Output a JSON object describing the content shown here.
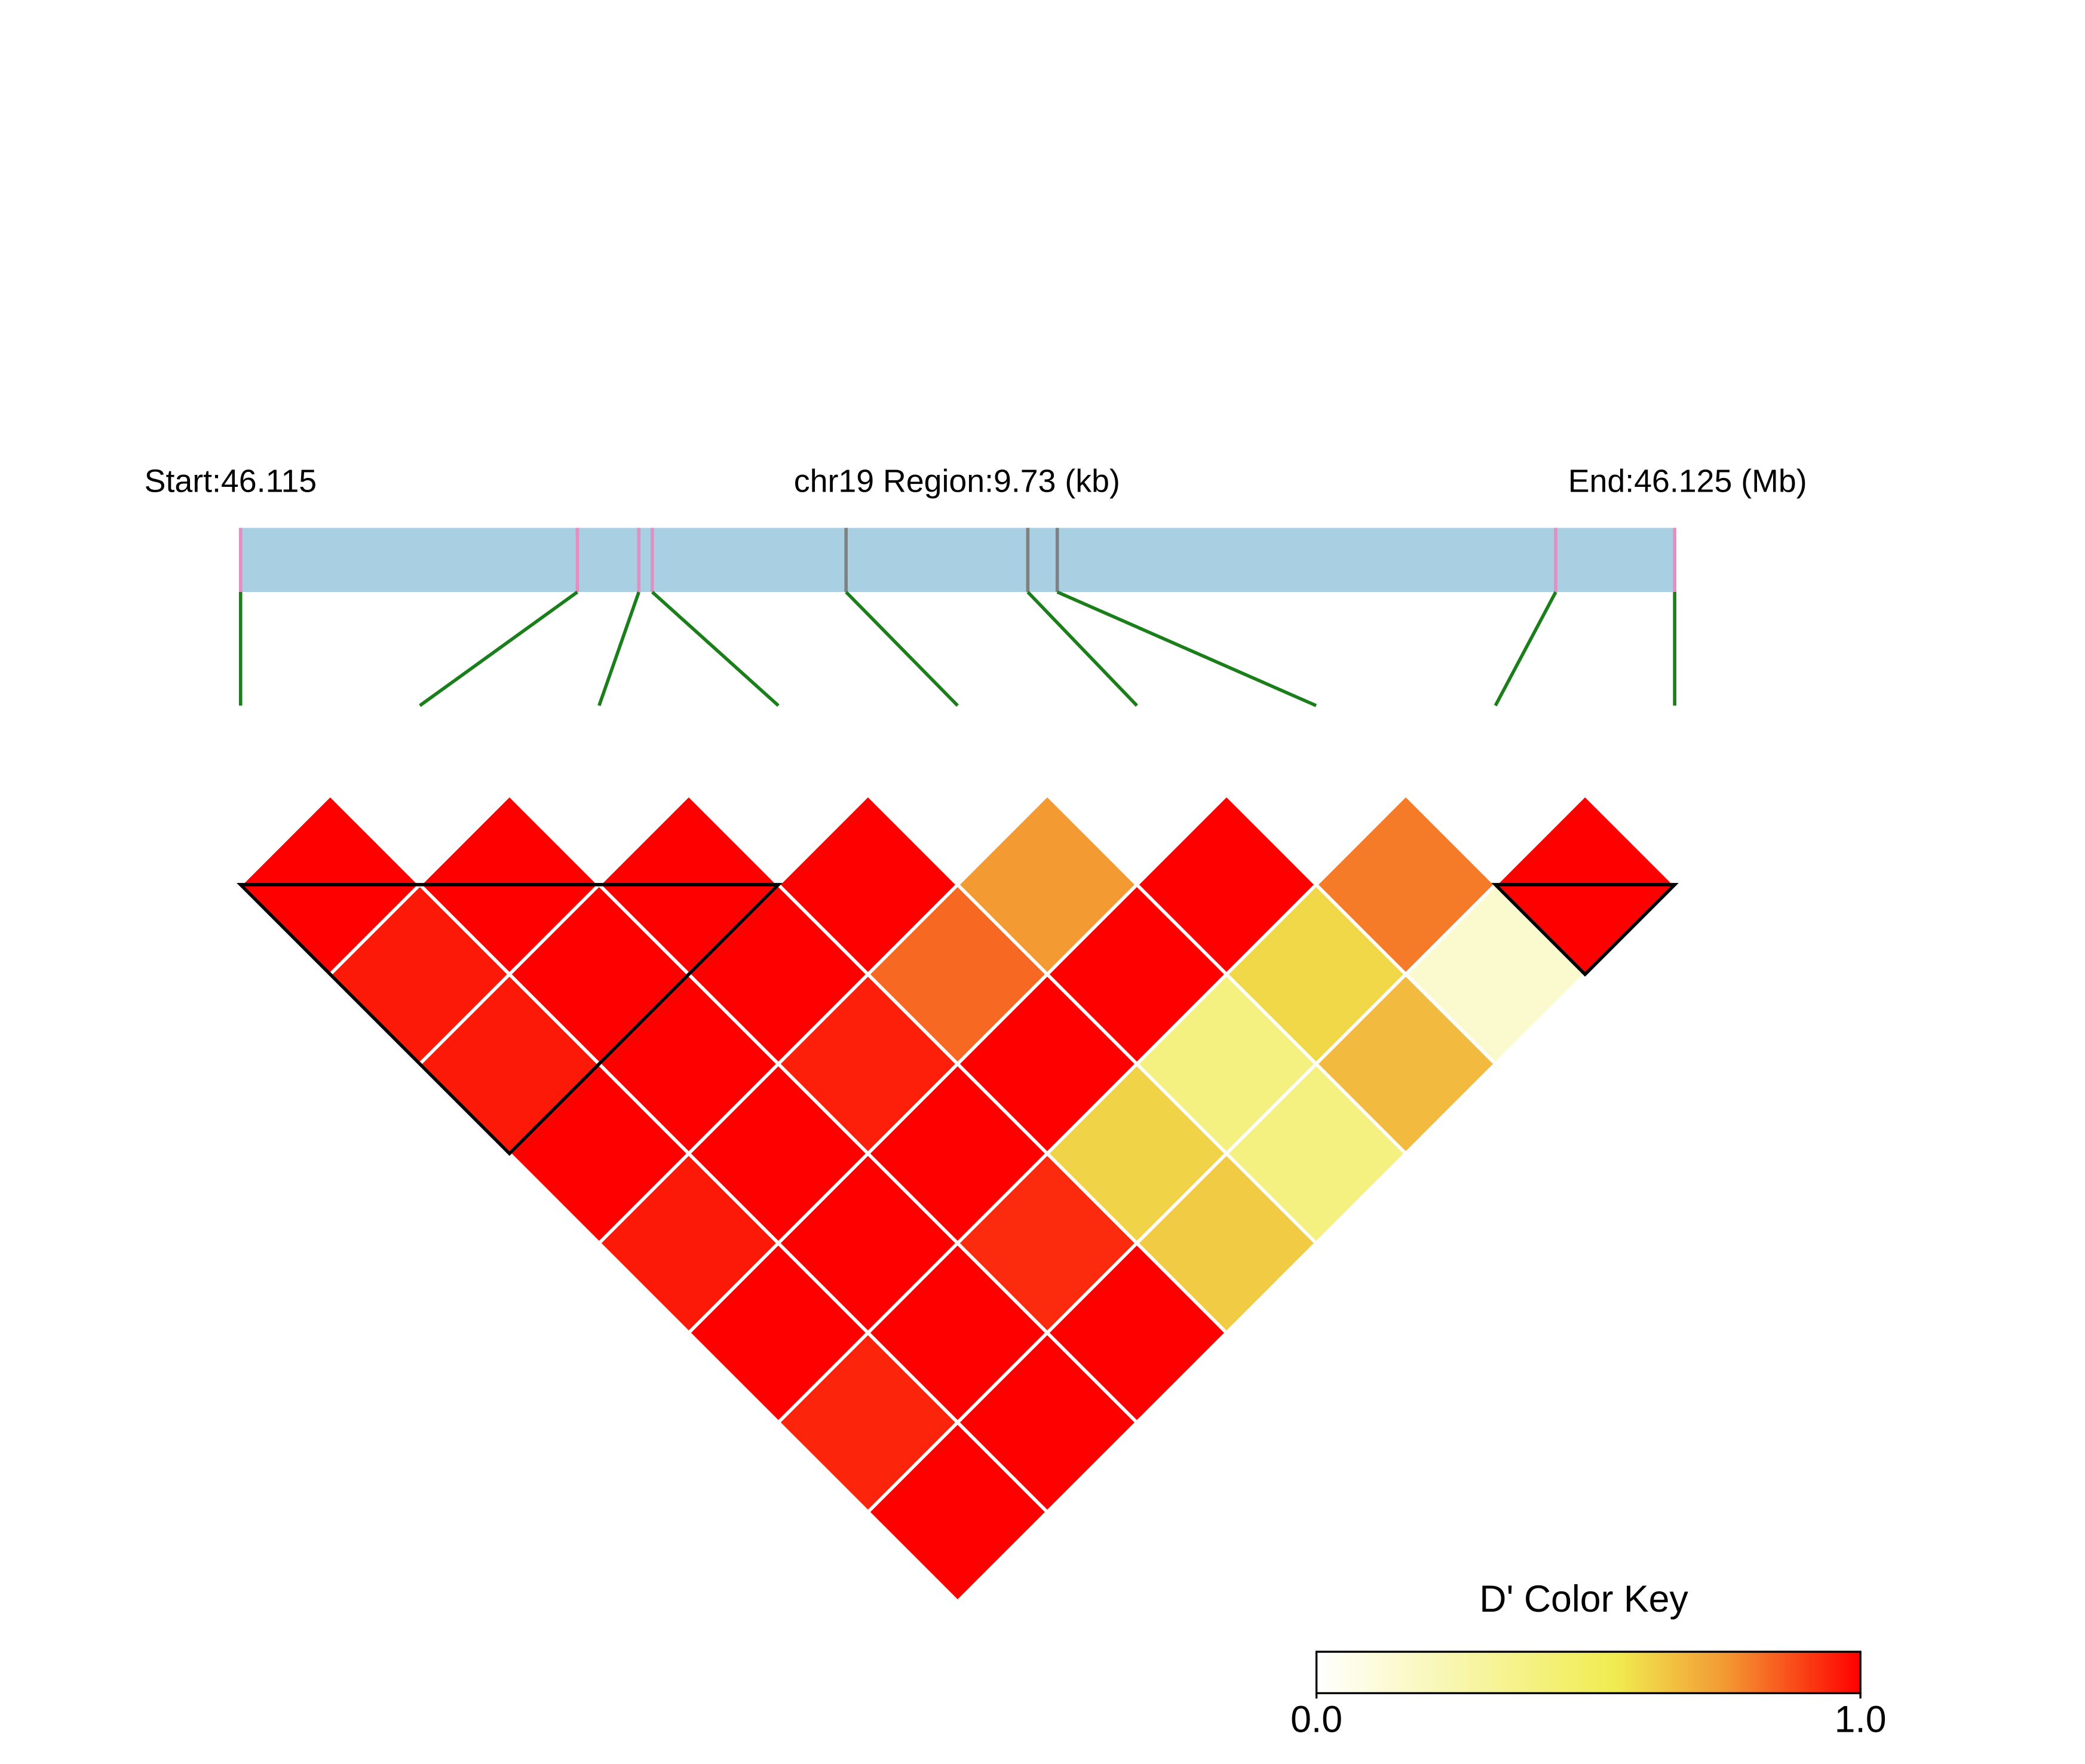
{
  "chart_data": {
    "type": "ld-heatmap",
    "start_label": "Start:46.115",
    "region_label": "chr19 Region:9.73 (kb)",
    "end_label": "End:46.125 (Mb)",
    "snp_positions": [
      0,
      2.285,
      2.702,
      2.793,
      4.108,
      5.341,
      5.541,
      8.923,
      9.73
    ],
    "xlim": [
      0,
      9.73
    ],
    "snp_colors": [
      "#e38fc2",
      "#e38fc2",
      "#e38fc2",
      "#e38fc2",
      "#808080",
      "#808080",
      "#808080",
      "#e38fc2",
      "#e38fc2"
    ],
    "bar_color": "#a8cfe2",
    "connector_color": "#1a7f1a",
    "d_prime": [
      [
        1,
        0.96,
        0.96,
        1,
        0.96,
        1,
        0.94,
        1
      ],
      [
        1,
        1,
        1,
        1,
        1,
        1,
        1
      ],
      [
        1,
        1,
        0.95,
        1,
        0.93,
        1
      ],
      [
        1,
        0.83,
        1,
        0.61,
        0.63
      ],
      [
        0.75,
        1,
        0.4,
        0.4
      ],
      [
        1,
        0.6,
        0.67
      ],
      [
        0.8,
        0.15
      ],
      [
        1
      ]
    ],
    "blocks": [
      [
        0,
        3
      ],
      [
        7,
        8
      ]
    ],
    "color_scale": [
      [
        0,
        "#ffffff"
      ],
      [
        0.55,
        "#f0ec50"
      ],
      [
        0.75,
        "#f39a33"
      ],
      [
        1,
        "#ff0000"
      ]
    ],
    "key_title": "D' Color Key",
    "key_lim": [
      0,
      1
    ],
    "key_ticks": [
      {
        "value": 0,
        "label": "0.0"
      },
      {
        "value": 1,
        "label": "1.0"
      }
    ]
  }
}
